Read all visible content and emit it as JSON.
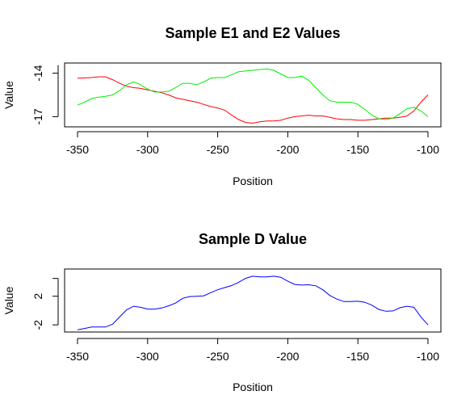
{
  "chart_data": [
    {
      "type": "line",
      "title": "Sample E1 and E2 Values",
      "xlabel": "Position",
      "ylabel": "Value",
      "xlim": [
        -350,
        -100
      ],
      "ylim": [
        -17.7,
        -13.3
      ],
      "xticks": [
        -350,
        -300,
        -250,
        -200,
        -150,
        -100
      ],
      "yticks": [
        -14,
        -17
      ],
      "x": [
        -350,
        -345,
        -340,
        -335,
        -330,
        -325,
        -320,
        -315,
        -310,
        -305,
        -300,
        -295,
        -290,
        -285,
        -280,
        -275,
        -270,
        -265,
        -260,
        -255,
        -250,
        -245,
        -240,
        -235,
        -230,
        -225,
        -220,
        -215,
        -210,
        -205,
        -200,
        -195,
        -190,
        -185,
        -180,
        -175,
        -170,
        -165,
        -160,
        -155,
        -150,
        -145,
        -140,
        -135,
        -130,
        -125,
        -120,
        -115,
        -110,
        -105,
        -100
      ],
      "series": [
        {
          "color": "#ff0000",
          "values": [
            -14.35,
            -14.33,
            -14.3,
            -14.25,
            -14.25,
            -14.45,
            -14.7,
            -14.9,
            -15.0,
            -15.05,
            -15.15,
            -15.25,
            -15.35,
            -15.5,
            -15.7,
            -15.8,
            -15.9,
            -16.0,
            -16.15,
            -16.3,
            -16.4,
            -16.55,
            -16.9,
            -17.2,
            -17.4,
            -17.45,
            -17.35,
            -17.3,
            -17.3,
            -17.25,
            -17.1,
            -17.0,
            -16.95,
            -16.9,
            -16.95,
            -16.95,
            -17.05,
            -17.15,
            -17.2,
            -17.2,
            -17.25,
            -17.25,
            -17.2,
            -17.15,
            -17.1,
            -17.1,
            -17.05,
            -16.95,
            -16.6,
            -16.0,
            -15.5
          ]
        },
        {
          "color": "#00ee00",
          "values": [
            -16.2,
            -16.0,
            -15.75,
            -15.65,
            -15.6,
            -15.5,
            -15.2,
            -14.8,
            -14.6,
            -14.8,
            -15.1,
            -15.3,
            -15.3,
            -15.25,
            -15.0,
            -14.7,
            -14.7,
            -14.8,
            -14.6,
            -14.35,
            -14.3,
            -14.3,
            -14.1,
            -13.9,
            -13.85,
            -13.8,
            -13.75,
            -13.7,
            -13.8,
            -14.05,
            -14.3,
            -14.3,
            -14.2,
            -14.5,
            -15.0,
            -15.5,
            -15.9,
            -16.0,
            -16.0,
            -16.0,
            -16.15,
            -16.5,
            -16.9,
            -17.15,
            -17.2,
            -17.1,
            -16.8,
            -16.45,
            -16.35,
            -16.6,
            -17.0
          ]
        }
      ]
    },
    {
      "type": "line",
      "title": "Sample D Value",
      "xlabel": "Position",
      "ylabel": "Value",
      "xlim": [
        -350,
        -100
      ],
      "ylim": [
        -3.0,
        5.8
      ],
      "xticks": [
        -350,
        -300,
        -250,
        -200,
        -150,
        -100
      ],
      "yticks": [
        2,
        -2
      ],
      "x": [
        -350,
        -345,
        -340,
        -335,
        -330,
        -325,
        -320,
        -315,
        -310,
        -305,
        -300,
        -295,
        -290,
        -285,
        -280,
        -275,
        -270,
        -265,
        -260,
        -255,
        -250,
        -245,
        -240,
        -235,
        -230,
        -225,
        -220,
        -215,
        -210,
        -205,
        -200,
        -195,
        -190,
        -185,
        -180,
        -175,
        -170,
        -165,
        -160,
        -155,
        -150,
        -145,
        -140,
        -135,
        -130,
        -125,
        -120,
        -115,
        -110,
        -105,
        -100
      ],
      "series": [
        {
          "color": "#0000ff",
          "values": [
            -2.7,
            -2.5,
            -2.3,
            -2.3,
            -2.3,
            -1.9,
            -0.9,
            0.1,
            0.6,
            0.45,
            0.2,
            0.2,
            0.35,
            0.65,
            1.05,
            1.7,
            1.95,
            2.0,
            2.05,
            2.5,
            2.9,
            3.2,
            3.5,
            3.95,
            4.5,
            4.8,
            4.7,
            4.7,
            4.8,
            4.65,
            4.1,
            3.65,
            3.55,
            3.6,
            3.45,
            2.9,
            2.1,
            1.6,
            1.25,
            1.25,
            1.3,
            1.15,
            0.75,
            0.15,
            -0.1,
            -0.05,
            0.4,
            0.6,
            0.45,
            -0.9,
            -2.0
          ]
        }
      ]
    }
  ]
}
